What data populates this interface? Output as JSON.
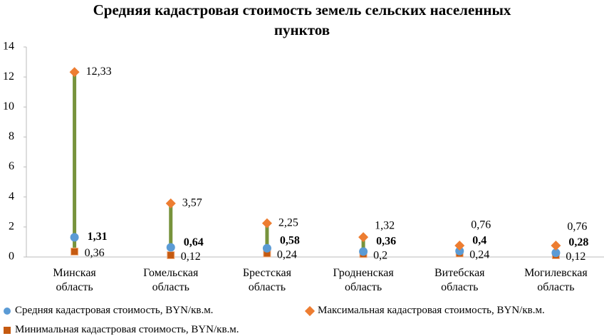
{
  "chart_data": {
    "type": "high-low",
    "title": "Средняя кадастровая стоимость земель сельских населенных пунктов",
    "categories": [
      "Минская область",
      "Гомельская область",
      "Брестская область",
      "Гродненская область",
      "Витебская область",
      "Могилевская область"
    ],
    "series": [
      {
        "name": "Средняя кадастровая стоимость, BYN/кв.м.",
        "role": "mid",
        "marker": "circle",
        "color": "#5b9bd5",
        "values": [
          1.31,
          0.64,
          0.58,
          0.36,
          0.4,
          0.28
        ],
        "value_labels": [
          "1,31",
          "0,64",
          "0,58",
          "0,36",
          "0,4",
          "0,28"
        ]
      },
      {
        "name": "Максимальная кадастровая стоимость, BYN/кв.м.",
        "role": "high",
        "marker": "diamond",
        "color": "#ed7d31",
        "values": [
          12.33,
          3.57,
          2.25,
          1.32,
          0.76,
          0.76
        ],
        "value_labels": [
          "12,33",
          "3,57",
          "2,25",
          "1,32",
          "0,76",
          "0,76"
        ]
      },
      {
        "name": "Минимальная кадастровая стоимость, BYN/кв.м.",
        "role": "low",
        "marker": "square",
        "color": "#c55a11",
        "values": [
          0.36,
          0.12,
          0.24,
          0.2,
          0.24,
          0.12
        ],
        "value_labels": [
          "0,36",
          "0,12",
          "0,24",
          "0,2",
          "0,24",
          "0,12"
        ]
      }
    ],
    "range_line_color": "#77933c",
    "ylim": [
      0,
      14
    ],
    "yticks": [
      0,
      2,
      4,
      6,
      8,
      10,
      12,
      14
    ],
    "grid": false
  }
}
